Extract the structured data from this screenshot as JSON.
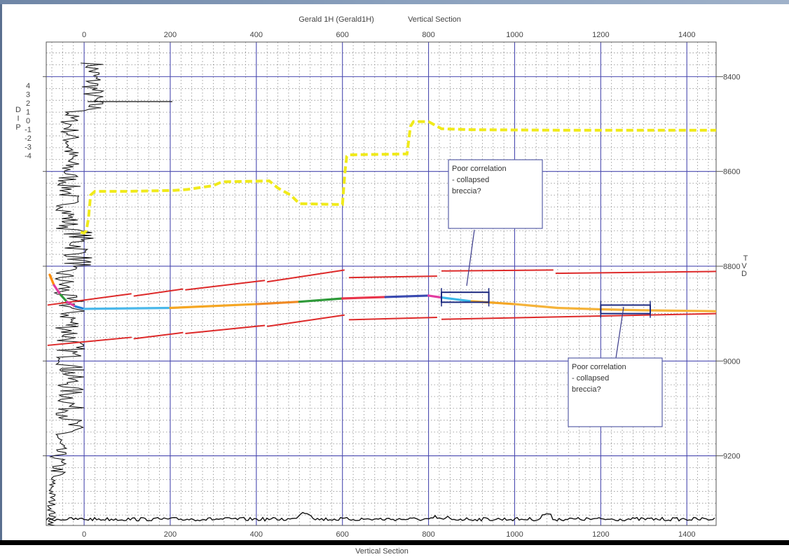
{
  "chart_data": {
    "type": "line",
    "title": "Gerald 1H (Gerald1H)",
    "subtitle": "Vertical Section",
    "xlabel": "Vertical Section",
    "ylabel": "TVD",
    "xlim": [
      -88,
      1468
    ],
    "ylim": [
      8327,
      9347
    ],
    "x_ticks": [
      0,
      200,
      400,
      600,
      800,
      1000,
      1200,
      1400
    ],
    "y_ticks": [
      8400,
      8600,
      8800,
      9000,
      9200
    ],
    "grid": true,
    "dip_axis": {
      "label": "DIP",
      "ticks": [
        "4",
        "3",
        "2",
        "1",
        "0",
        "-1",
        "-2",
        "-3",
        "-4"
      ]
    },
    "colors": {
      "well_path": "#f0ea1a",
      "formation_lines": "#dd2a2a",
      "logs": "#111111",
      "annotation_box": "#5b60a8"
    },
    "series": [
      {
        "role": "well-path",
        "points": [
          [
            -8,
            8728
          ],
          [
            0,
            8730
          ],
          [
            5,
            8725
          ],
          [
            10,
            8700
          ],
          [
            15,
            8650
          ],
          [
            25,
            8642
          ],
          [
            100,
            8642
          ],
          [
            210,
            8640
          ],
          [
            240,
            8638
          ],
          [
            300,
            8630
          ],
          [
            320,
            8622
          ],
          [
            430,
            8620
          ],
          [
            450,
            8635
          ],
          [
            480,
            8650
          ],
          [
            500,
            8668
          ],
          [
            600,
            8670
          ],
          [
            606,
            8600
          ],
          [
            610,
            8568
          ],
          [
            615,
            8565
          ],
          [
            750,
            8563
          ],
          [
            758,
            8505
          ],
          [
            765,
            8495
          ],
          [
            800,
            8495
          ],
          [
            830,
            8510
          ],
          [
            900,
            8512
          ],
          [
            1100,
            8513
          ],
          [
            1470,
            8513
          ]
        ]
      },
      {
        "role": "top-formation",
        "segments": [
          [
            [
              -85,
              8882
            ],
            [
              110,
              8858
            ]
          ],
          [
            [
              115,
              8863
            ],
            [
              230,
              8848
            ]
          ],
          [
            [
              235,
              8850
            ],
            [
              420,
              8830
            ]
          ],
          [
            [
              425,
              8833
            ],
            [
              605,
              8808
            ]
          ],
          [
            [
              615,
              8824
            ],
            [
              820,
              8821
            ]
          ],
          [
            [
              830,
              8810
            ],
            [
              1090,
              8808
            ]
          ],
          [
            [
              1095,
              8815
            ],
            [
              1470,
              8811
            ]
          ]
        ]
      },
      {
        "role": "bottom-formation",
        "segments": [
          [
            [
              -85,
              8967
            ],
            [
              110,
              8950
            ]
          ],
          [
            [
              115,
              8953
            ],
            [
              230,
              8940
            ]
          ],
          [
            [
              235,
              8942
            ],
            [
              420,
              8925
            ]
          ],
          [
            [
              425,
              8927
            ],
            [
              605,
              8903
            ]
          ],
          [
            [
              615,
              8913
            ],
            [
              820,
              8908
            ]
          ],
          [
            [
              830,
              8912
            ],
            [
              1470,
              8900
            ]
          ]
        ]
      },
      {
        "role": "interpreted-horizon",
        "points": [
          [
            -80,
            8818
          ],
          [
            -70,
            8840
          ],
          [
            -55,
            8860
          ],
          [
            -40,
            8875
          ],
          [
            -20,
            8885
          ],
          [
            0,
            8890
          ],
          [
            200,
            8888
          ],
          [
            400,
            8880
          ],
          [
            500,
            8875
          ],
          [
            600,
            8868
          ],
          [
            700,
            8865
          ],
          [
            800,
            8862
          ],
          [
            830,
            8866
          ],
          [
            900,
            8874
          ],
          [
            1000,
            8880
          ],
          [
            1100,
            8888
          ],
          [
            1200,
            8891
          ],
          [
            1300,
            8893
          ],
          [
            1470,
            8895
          ]
        ],
        "segment_colors": [
          "#ff8c00",
          "#e23ca0",
          "#2f9a3a",
          "#e23ca0",
          "#1f7fd6",
          "#4ab8ea",
          "#f5a623",
          "#f08a24",
          "#2f9a3a",
          "#e8344a",
          "#3a4ab0",
          "#e23ca0",
          "#3ab8e8",
          "#f5a623",
          "#f5b33a",
          "#f5b33a",
          "#f5b33a",
          "#f5b33a"
        ]
      }
    ],
    "correlation_windows": [
      {
        "x": [
          830,
          940
        ],
        "y": [
          8855,
          8876
        ]
      },
      {
        "x": [
          1200,
          1315
        ],
        "y": [
          8882,
          8900
        ]
      }
    ],
    "annotations": [
      {
        "lines": [
          "Poor correlation",
          "- collapsed",
          "breccia?"
        ]
      },
      {
        "lines": [
          "Poor correlation",
          "- collapsed",
          "breccia?"
        ]
      }
    ]
  }
}
